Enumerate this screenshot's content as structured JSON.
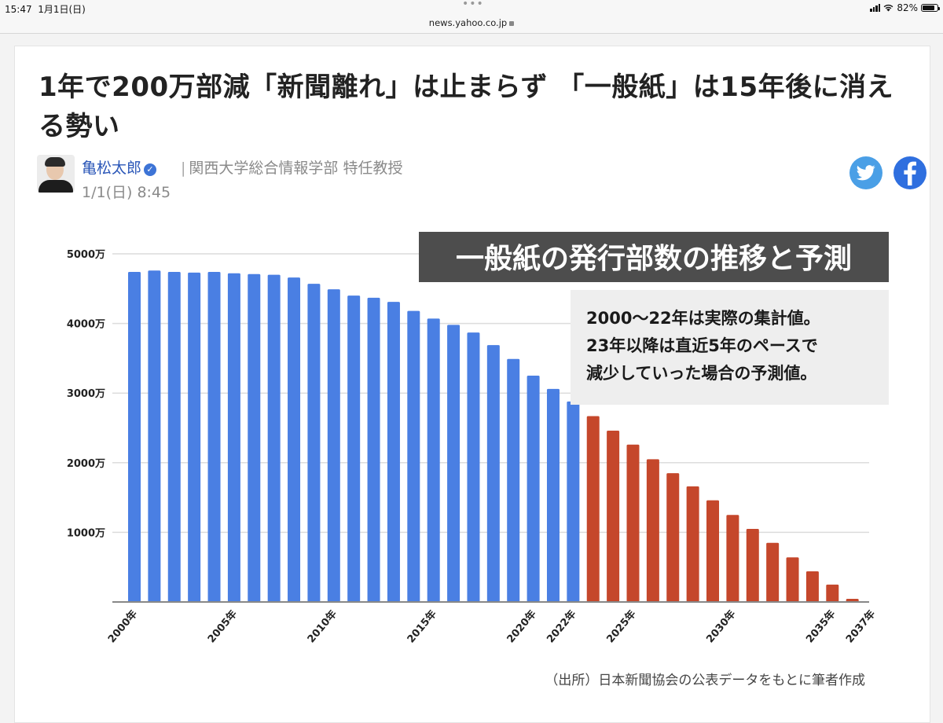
{
  "status_bar": {
    "time": "15:47",
    "date": "1月1日(日)",
    "url": "news.yahoo.co.jp",
    "battery": "82%",
    "battery_level": 0.82,
    "icons": [
      "signal-icon",
      "wifi-icon",
      "battery-icon",
      "lock-icon",
      "more-dots-icon"
    ]
  },
  "article": {
    "title": "1年で200万部減「新聞離れ」は止まらず 「一般紙」は15年後に消える勢い",
    "author": {
      "name": "亀松太郎",
      "verified": true,
      "affiliation": "関西大学総合情報学部 特任教授",
      "published": "1/1(日) 8:45"
    },
    "share": [
      {
        "name": "twitter",
        "color": "#4a9fe6"
      },
      {
        "name": "facebook",
        "color": "#2f6fdf"
      }
    ]
  },
  "chart_data": {
    "type": "bar",
    "title": "一般紙の発行部数の推移と予測",
    "annotation": [
      "2000〜22年は実際の集計値。",
      "23年以降は直近5年のペースで",
      "減少していった場合の予測値。"
    ],
    "source": "（出所）日本新聞協会の公表データをもとに筆者作成",
    "xlabel": "",
    "ylabel": "",
    "unit": "部（万）",
    "ylim": [
      0,
      5000
    ],
    "y_ticks": [
      1000,
      2000,
      3000,
      4000,
      5000
    ],
    "y_tick_labels": [
      "1000万",
      "2000万",
      "3000万",
      "4000万",
      "5000万"
    ],
    "grid": true,
    "legend": "none",
    "x_tick_labels": [
      {
        "year": 2000,
        "label": "2000年"
      },
      {
        "year": 2005,
        "label": "2005年"
      },
      {
        "year": 2010,
        "label": "2010年"
      },
      {
        "year": 2015,
        "label": "2015年"
      },
      {
        "year": 2020,
        "label": "2020年"
      },
      {
        "year": 2022,
        "label": "2022年"
      },
      {
        "year": 2025,
        "label": "2025年"
      },
      {
        "year": 2030,
        "label": "2030年"
      },
      {
        "year": 2035,
        "label": "2035年"
      },
      {
        "year": 2037,
        "label": "2037年"
      }
    ],
    "series": [
      {
        "name": "実際の集計値",
        "color": "#4a7fe3",
        "x": [
          2000,
          2001,
          2002,
          2003,
          2004,
          2005,
          2006,
          2007,
          2008,
          2009,
          2010,
          2011,
          2012,
          2013,
          2014,
          2015,
          2016,
          2017,
          2018,
          2019,
          2020,
          2021,
          2022
        ],
        "values": [
          4740,
          4760,
          4740,
          4730,
          4740,
          4720,
          4710,
          4700,
          4660,
          4570,
          4490,
          4400,
          4370,
          4310,
          4180,
          4070,
          3980,
          3870,
          3690,
          3490,
          3250,
          3060,
          2880
        ]
      },
      {
        "name": "予測値",
        "color": "#c5472b",
        "x": [
          2023,
          2024,
          2025,
          2026,
          2027,
          2028,
          2029,
          2030,
          2031,
          2032,
          2033,
          2034,
          2035,
          2036,
          2037
        ],
        "values": [
          2670,
          2460,
          2260,
          2050,
          1850,
          1660,
          1460,
          1250,
          1050,
          850,
          640,
          440,
          250,
          45,
          0
        ]
      }
    ]
  }
}
